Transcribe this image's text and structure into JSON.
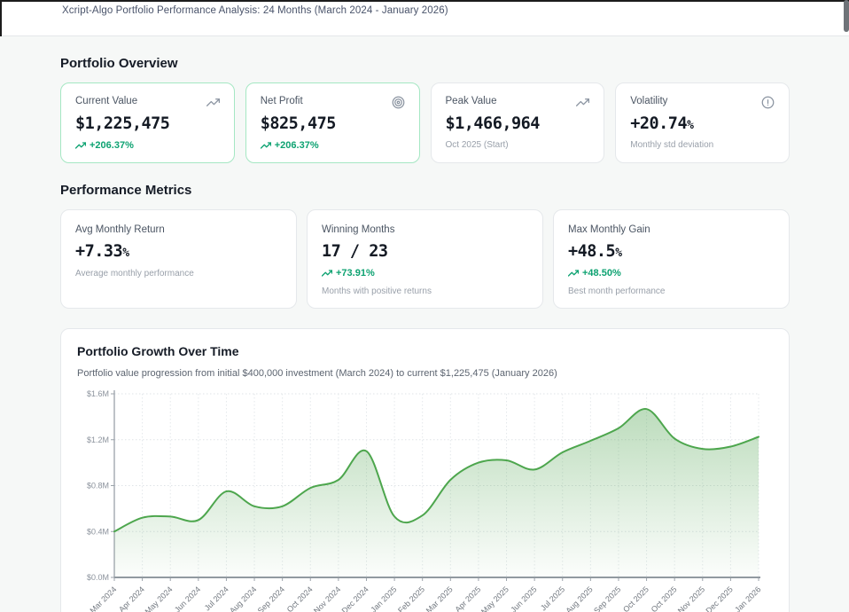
{
  "header": {
    "title": "Xcript-Algo Portfolio Performance Analysis: 24 Months (March 2024 - January 2026)"
  },
  "overview": {
    "heading": "Portfolio Overview",
    "cards": [
      {
        "label": "Current Value",
        "value": "$1,225,475",
        "change": "+206.37%",
        "icon": "trending-up-icon",
        "accent_border": "#a5e7c3"
      },
      {
        "label": "Net Profit",
        "value": "$825,475",
        "change": "+206.37%",
        "icon": "target-icon",
        "accent_border": "#a5e7c3"
      },
      {
        "label": "Peak Value",
        "value": "$1,466,964",
        "sub": "Oct 2025 (Start)",
        "icon": "trending-up-icon"
      },
      {
        "label": "Volatility",
        "value": "+20.74",
        "value_suffix": "%",
        "sub": "Monthly std deviation",
        "icon": "alert-circle-icon"
      }
    ]
  },
  "metrics": {
    "heading": "Performance Metrics",
    "cards": [
      {
        "label": "Avg Monthly Return",
        "value": "+7.33",
        "value_suffix": "%",
        "sub": "Average monthly performance"
      },
      {
        "label": "Winning Months",
        "value": "17 / 23",
        "change": "+73.91%",
        "sub": "Months with positive returns"
      },
      {
        "label": "Max Monthly Gain",
        "value": "+48.5",
        "value_suffix": "%",
        "change": "+48.50%",
        "sub": "Best month performance"
      }
    ]
  },
  "chart_section": {
    "title": "Portfolio Growth Over Time",
    "subtitle": "Portfolio value progression from initial $400,000 investment (March 2024) to current $1,225,475 (January 2026)"
  },
  "chart_data": {
    "type": "area",
    "title": "Portfolio Growth Over Time",
    "x": [
      "Mar 2024",
      "Apr 2024",
      "May 2024",
      "Jun 2024",
      "Jul 2024",
      "Aug 2024",
      "Sep 2024",
      "Oct 2024",
      "Nov 2024",
      "Dec 2024",
      "Jan 2025",
      "Feb 2025",
      "Mar 2025",
      "Apr 2025",
      "May 2025",
      "Jun 2025",
      "Jul 2025",
      "Aug 2025",
      "Sep 2025",
      "Oct 2025",
      "Oct 2025",
      "Nov 2025",
      "Dec 2025",
      "Jan 2026"
    ],
    "values_musd": [
      0.4,
      0.52,
      0.53,
      0.5,
      0.75,
      0.62,
      0.62,
      0.78,
      0.85,
      1.1,
      0.53,
      0.54,
      0.85,
      1.0,
      1.02,
      0.94,
      1.09,
      1.19,
      1.3,
      1.467,
      1.21,
      1.12,
      1.14,
      1.225
    ],
    "ylim": [
      0,
      1.6
    ],
    "ytick_step": 0.4,
    "ytick_prefix": "$",
    "ytick_suffix": "M",
    "grid": true,
    "legend": false,
    "line_color": "#4da64d",
    "fill_color_top": "rgba(96,172,96,0.42)",
    "fill_color_bottom": "rgba(96,172,96,0.02)",
    "grid_color": "#dfe3e7",
    "axis_color": "#9ba2aa"
  },
  "colors": {
    "accent_green": "#0da271",
    "accent_border_green": "#a5e7c3",
    "value_text": "#141a24",
    "page_bg": "#f6f8f7"
  }
}
